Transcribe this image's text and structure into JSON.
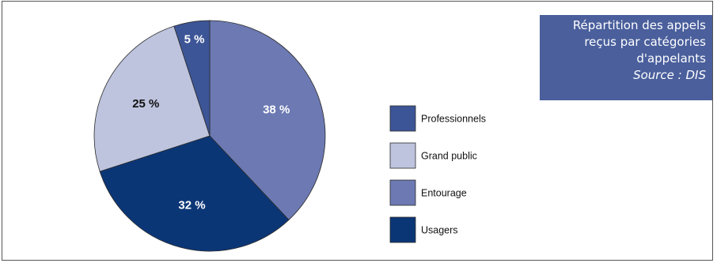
{
  "chart_data": {
    "type": "pie",
    "title_lines": [
      "Répartition des appels",
      "reçus par catégories",
      "d'appelants"
    ],
    "source": "Source : DIS",
    "start_angle_deg": 0,
    "slices": [
      {
        "name": "Entourage",
        "value": 38,
        "label": "38 %",
        "color": "#6c79b2",
        "label_color": "#ffffff"
      },
      {
        "name": "Usagers",
        "value": 32,
        "label": "32 %",
        "color": "#0b3676",
        "label_color": "#ffffff"
      },
      {
        "name": "Grand public",
        "value": 25,
        "label": "25 %",
        "color": "#bec4de",
        "label_color": "#111111"
      },
      {
        "name": "Professionnels",
        "value": 5,
        "label": "5 %",
        "color": "#3c5597",
        "label_color": "#ffffff"
      }
    ],
    "legend": [
      {
        "name": "Professionnels",
        "color": "#3c5597"
      },
      {
        "name": "Grand public",
        "color": "#bec4de"
      },
      {
        "name": "Entourage",
        "color": "#6c79b2"
      },
      {
        "name": "Usagers",
        "color": "#0b3676"
      }
    ],
    "legend_position": "right",
    "title_box_color": "#4a5f9c"
  }
}
